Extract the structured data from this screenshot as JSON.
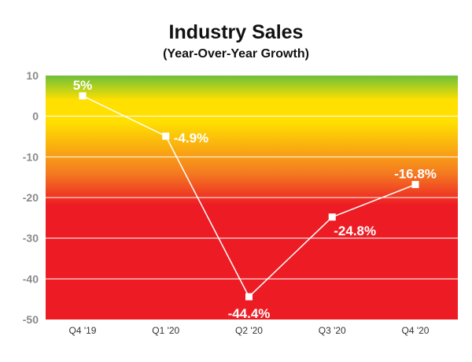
{
  "chart_data": {
    "type": "line",
    "title": "Industry Sales",
    "subtitle": "(Year-Over-Year Growth)",
    "xlabel": "",
    "ylabel": "",
    "categories": [
      "Q4 '19",
      "Q1 '20",
      "Q2 '20",
      "Q3 '20",
      "Q4 '20"
    ],
    "series": [
      {
        "values": [
          5,
          -4.9,
          -44.4,
          -24.8,
          -16.8
        ]
      }
    ],
    "data_labels": [
      "5%",
      "-4.9%",
      "-44.4%",
      "-24.8%",
      "-16.8%"
    ],
    "ylim": [
      -50,
      10
    ],
    "yticks": [
      10,
      0,
      -10,
      -20,
      -30,
      -40,
      -50
    ],
    "grid": true,
    "legend": "none"
  },
  "colors": {
    "band_green": "#6cbf3a",
    "band_yellow": "#ffe000",
    "band_orange": "#f47b20",
    "band_red": "#ed1c24",
    "line": "#ffffff",
    "grid": "#ffffff"
  }
}
